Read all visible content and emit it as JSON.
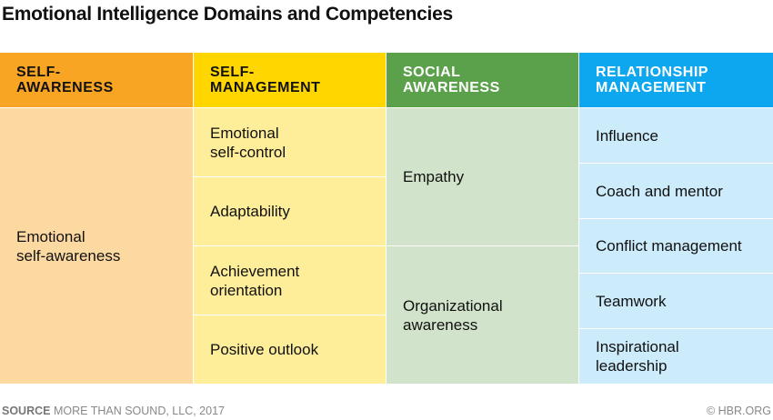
{
  "title": "Emotional Intelligence Domains and Competencies",
  "colors": {
    "self_awareness": "#F9A524",
    "self_management": "#FFD600",
    "social_awareness": "#5BA14B",
    "relationship_management": "#0CA7EE"
  },
  "columns": [
    {
      "header": "Self-\nawareness",
      "items": [
        "Emotional\nself-awareness"
      ]
    },
    {
      "header": "Self-\nmanagement",
      "items": [
        "Emotional\nself-control",
        "Adaptability",
        "Achievement\norientation",
        "Positive outlook"
      ]
    },
    {
      "header": "Social\nawareness",
      "items": [
        "Empathy",
        "Organizational\nawareness"
      ]
    },
    {
      "header": "Relationship\nmanagement",
      "items": [
        "Influence",
        "Coach and mentor",
        "Conflict management",
        "Teamwork",
        "Inspirational\nleadership"
      ]
    }
  ],
  "footer": {
    "source_label": "SOURCE",
    "source_text": "MORE THAN SOUND, LLC, 2017",
    "credit": "© HBR.ORG"
  }
}
